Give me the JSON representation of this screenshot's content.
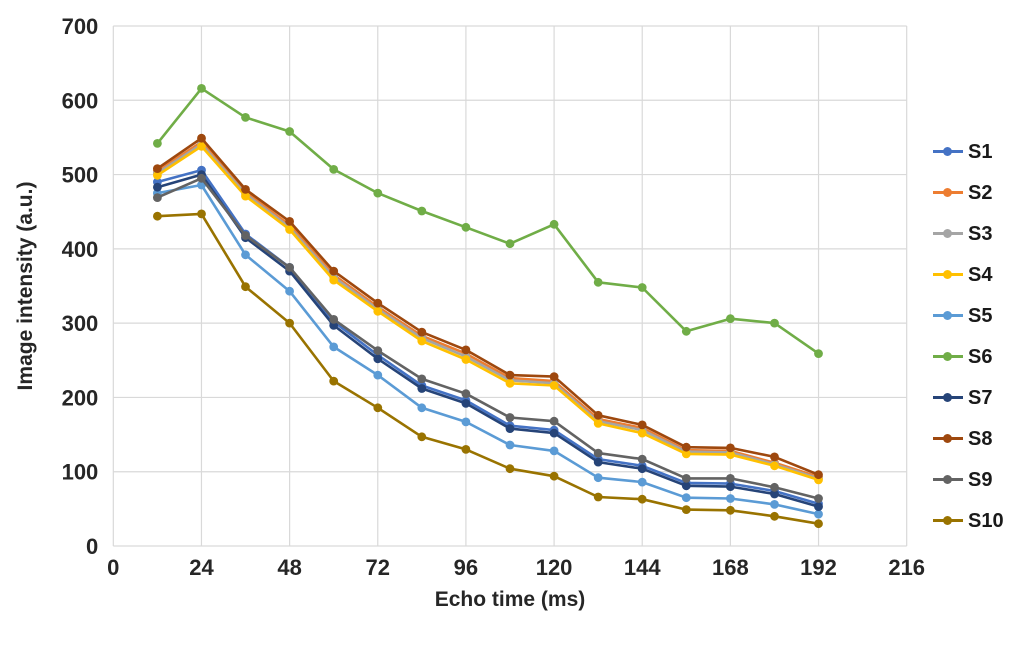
{
  "chart_data": {
    "type": "line",
    "title": "",
    "xlabel": "Echo time (ms)",
    "ylabel": "Image intensity (a.u.)",
    "xlim": [
      0,
      216
    ],
    "ylim": [
      0,
      700
    ],
    "xticks": [
      0,
      24,
      48,
      72,
      96,
      120,
      144,
      168,
      192,
      216
    ],
    "yticks": [
      0,
      100,
      200,
      300,
      400,
      500,
      600,
      700
    ],
    "grid": true,
    "legend_position": "right",
    "x": [
      12,
      24,
      36,
      48,
      60,
      72,
      84,
      96,
      108,
      120,
      132,
      144,
      156,
      168,
      180,
      192
    ],
    "series": [
      {
        "name": "S1",
        "color": "#4472C4",
        "values": [
          490,
          506,
          420,
          375,
          302,
          257,
          216,
          196,
          162,
          156,
          117,
          108,
          85,
          84,
          74,
          57
        ]
      },
      {
        "name": "S2",
        "color": "#ED7D31",
        "values": [
          505,
          544,
          477,
          432,
          365,
          322,
          283,
          259,
          226,
          222,
          171,
          159,
          129,
          128,
          112,
          93
        ]
      },
      {
        "name": "S3",
        "color": "#A5A5A5",
        "values": [
          502,
          541,
          474,
          429,
          362,
          319,
          280,
          255,
          223,
          219,
          168,
          156,
          127,
          126,
          110,
          91
        ]
      },
      {
        "name": "S4",
        "color": "#FFC000",
        "values": [
          499,
          538,
          471,
          426,
          358,
          316,
          276,
          251,
          219,
          216,
          165,
          152,
          124,
          123,
          108,
          89
        ]
      },
      {
        "name": "S5",
        "color": "#5B9BD5",
        "values": [
          475,
          486,
          392,
          343,
          268,
          230,
          186,
          167,
          136,
          128,
          92,
          86,
          65,
          64,
          56,
          43
        ]
      },
      {
        "name": "S6",
        "color": "#70AD47",
        "values": [
          542,
          616,
          577,
          558,
          507,
          475,
          451,
          429,
          407,
          433,
          355,
          348,
          289,
          306,
          300,
          259
        ]
      },
      {
        "name": "S7",
        "color": "#264478",
        "values": [
          483,
          500,
          415,
          370,
          297,
          252,
          212,
          192,
          158,
          152,
          113,
          104,
          81,
          80,
          70,
          53
        ]
      },
      {
        "name": "S8",
        "color": "#9E480E",
        "values": [
          508,
          549,
          480,
          437,
          370,
          327,
          288,
          264,
          230,
          228,
          176,
          163,
          133,
          132,
          120,
          96
        ]
      },
      {
        "name": "S9",
        "color": "#636363",
        "values": [
          469,
          495,
          418,
          375,
          305,
          263,
          225,
          205,
          173,
          168,
          125,
          117,
          91,
          91,
          79,
          64
        ]
      },
      {
        "name": "S10",
        "color": "#997300",
        "values": [
          444,
          447,
          349,
          300,
          222,
          186,
          147,
          130,
          104,
          94,
          66,
          63,
          49,
          48,
          40,
          30
        ]
      }
    ],
    "grid_color": "#D9D9D9",
    "tick_color": "#262626"
  }
}
